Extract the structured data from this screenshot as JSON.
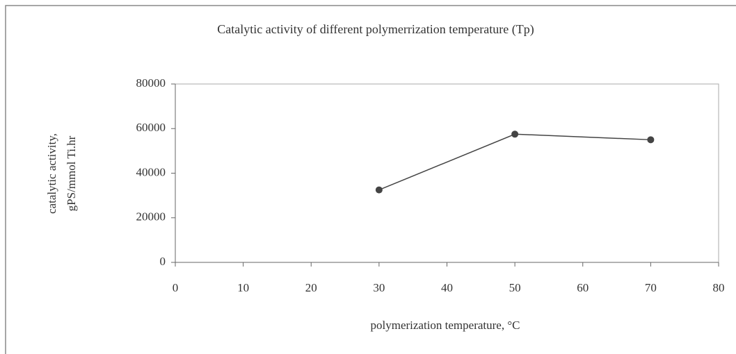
{
  "chart_data": {
    "type": "line",
    "title": "Catalytic activity of different polymerrization temperature (Tp)",
    "xlabel": "polymerization temperature, °C",
    "ylabel": [
      "catalytic activity,",
      "gPS/mmol Ti.hr"
    ],
    "x": [
      30,
      50,
      70
    ],
    "values": [
      32500,
      57500,
      55000
    ],
    "color": "#444444",
    "xlim": [
      0,
      80
    ],
    "xticks": [
      0,
      10,
      20,
      30,
      40,
      50,
      60,
      70,
      80
    ],
    "ylim": [
      0,
      80000
    ],
    "yticks": [
      0,
      20000,
      40000,
      60000,
      80000
    ],
    "grid": false
  }
}
